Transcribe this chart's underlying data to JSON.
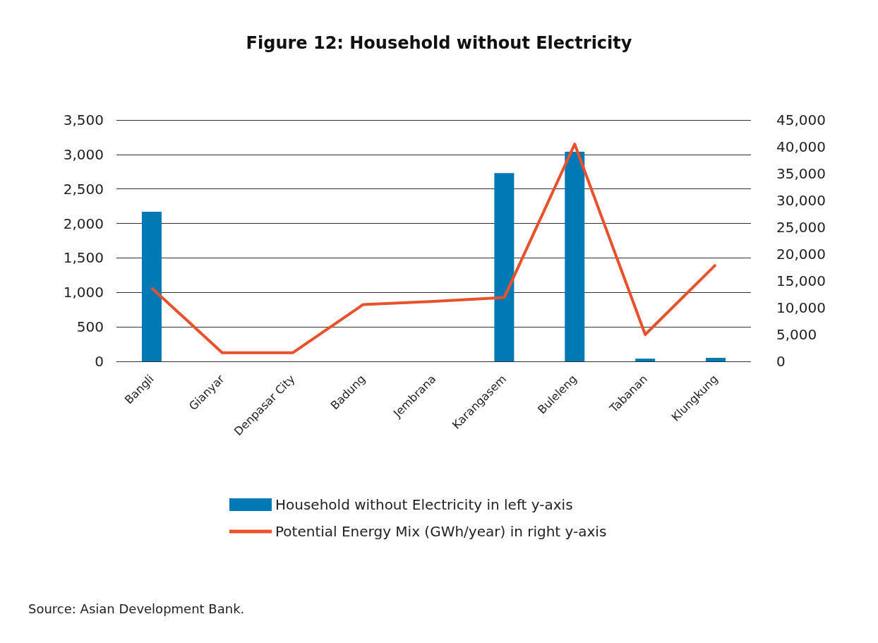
{
  "chart_data": {
    "type": "bar",
    "title": "Figure 12: Household without Electricity",
    "categories": [
      "Bangli",
      "Gianyar",
      "Denpasar City",
      "Badung",
      "Jembrana",
      "Karangasem",
      "Buleleng",
      "Tabanan",
      "Klungkung"
    ],
    "series": [
      {
        "name": "Household without Electricity in left y-axis",
        "color": "#0079b5",
        "values": [
          2170,
          0,
          0,
          0,
          0,
          2730,
          3040,
          40,
          50
        ]
      },
      {
        "name": "Potential Energy Mix (GWh/year) in right y-axis",
        "type": "line",
        "axis": "y2",
        "color": "#e8512b",
        "values": [
          13700,
          1600,
          1600,
          10600,
          11200,
          11900,
          40500,
          5000,
          18000
        ]
      }
    ],
    "ylim": [
      0,
      3500
    ],
    "yticks": [
      0,
      500,
      {
        "value": 1000,
        "label": "1,000"
      },
      {
        "value": 1500,
        "label": "1,500"
      },
      {
        "value": 2000,
        "label": "2,000"
      },
      {
        "value": 2500,
        "label": "2,500"
      },
      {
        "value": 3000,
        "label": "3,000"
      },
      {
        "value": 3500,
        "label": "3,500"
      }
    ],
    "y2lim": [
      0,
      45000
    ],
    "y2ticks": [
      0,
      {
        "value": 5000,
        "label": "5,000"
      },
      {
        "value": 10000,
        "label": "10,000"
      },
      {
        "value": 15000,
        "label": "15,000"
      },
      {
        "value": 20000,
        "label": "20,000"
      },
      {
        "value": 25000,
        "label": "25,000"
      },
      {
        "value": 30000,
        "label": "30,000"
      },
      {
        "value": 35000,
        "label": "35,000"
      },
      {
        "value": 40000,
        "label": "40,000"
      },
      {
        "value": 45000,
        "label": "45,000"
      }
    ],
    "grid": "y",
    "legend": "bottom",
    "marker": "none",
    "line_style": "solid",
    "annotations": [
      "Source: Asian Development Bank."
    ]
  }
}
